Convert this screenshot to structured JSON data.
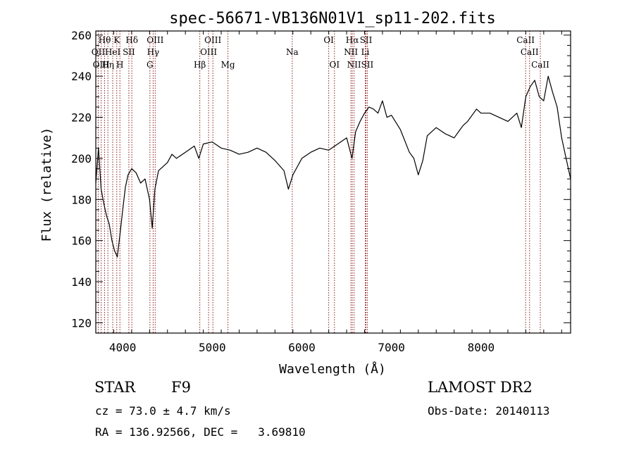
{
  "chart_data": {
    "type": "line",
    "title": "spec-56671-VB136N01V1_sp11-202.fits",
    "xlabel": "Wavelength (Å)",
    "ylabel": "Flux (relative)",
    "xlim": [
      3700,
      9000
    ],
    "ylim": [
      115,
      262
    ],
    "x_ticks": [
      4000,
      5000,
      6000,
      7000,
      8000
    ],
    "x_tick_labels": [
      "4000",
      "5000",
      "6000",
      "7000",
      "8000"
    ],
    "y_ticks": [
      120,
      140,
      160,
      180,
      200,
      220,
      240,
      260
    ],
    "y_tick_labels": [
      "120",
      "140",
      "160",
      "180",
      "200",
      "220",
      "240",
      "260"
    ],
    "grid": false,
    "series": [
      {
        "color": "#000000",
        "x": [
          3700,
          3730,
          3760,
          3790,
          3820,
          3850,
          3880,
          3910,
          3940,
          3970,
          4000,
          4030,
          4060,
          4100,
          4150,
          4200,
          4250,
          4300,
          4330,
          4360,
          4400,
          4450,
          4500,
          4550,
          4600,
          4700,
          4800,
          4850,
          4900,
          5000,
          5100,
          5200,
          5300,
          5400,
          5500,
          5600,
          5700,
          5800,
          5850,
          5900,
          5950,
          6000,
          6100,
          6200,
          6300,
          6400,
          6500,
          6560,
          6600,
          6650,
          6700,
          6750,
          6800,
          6850,
          6900,
          6950,
          7000,
          7100,
          7200,
          7250,
          7300,
          7350,
          7400,
          7500,
          7600,
          7700,
          7750,
          7800,
          7850,
          7900,
          7950,
          8000,
          8100,
          8200,
          8300,
          8400,
          8450,
          8500,
          8550,
          8600,
          8650,
          8700,
          8750,
          8800,
          8850,
          8900,
          8950,
          9000
        ],
        "values": [
          188,
          205,
          185,
          178,
          172,
          168,
          160,
          155,
          152,
          163,
          175,
          186,
          192,
          195,
          193,
          188,
          190,
          180,
          166,
          185,
          194,
          196,
          198,
          202,
          200,
          203,
          206,
          200,
          207,
          208,
          205,
          204,
          202,
          203,
          205,
          203,
          199,
          194,
          185,
          192,
          196,
          200,
          203,
          205,
          204,
          207,
          210,
          200,
          213,
          218,
          222,
          225,
          224,
          222,
          228,
          220,
          221,
          214,
          203,
          200,
          192,
          199,
          211,
          215,
          212,
          210,
          213,
          216,
          218,
          221,
          224,
          222,
          222,
          220,
          218,
          222,
          215,
          230,
          235,
          238,
          230,
          228,
          240,
          232,
          225,
          210,
          200,
          190
        ]
      }
    ],
    "lines": [
      {
        "label": "Hθ",
        "wavelength": 3798,
        "row": 1
      },
      {
        "label": "OII",
        "wavelength": 3727,
        "row": 2
      },
      {
        "label": "OIII",
        "wavelength": 3760,
        "row": 3
      },
      {
        "label": "K",
        "wavelength": 3934,
        "row": 1
      },
      {
        "label": "HeI",
        "wavelength": 3889,
        "row": 2
      },
      {
        "label": "Hη",
        "wavelength": 3835,
        "row": 3
      },
      {
        "label": "Hδ",
        "wavelength": 4102,
        "row": 1
      },
      {
        "label": "SII",
        "wavelength": 4069,
        "row": 2
      },
      {
        "label": "H",
        "wavelength": 3969,
        "row": 3
      },
      {
        "label": "OIII",
        "wavelength": 4363,
        "row": 1
      },
      {
        "label": "Hγ",
        "wavelength": 4340,
        "row": 2
      },
      {
        "label": "G",
        "wavelength": 4304,
        "row": 3
      },
      {
        "label": "OIII",
        "wavelength": 5007,
        "row": 1
      },
      {
        "label": "OIII",
        "wavelength": 4959,
        "row": 2
      },
      {
        "label": "Hβ",
        "wavelength": 4861,
        "row": 3
      },
      {
        "label": "Mg",
        "wavelength": 5175,
        "row": 3
      },
      {
        "label": "Na",
        "wavelength": 5893,
        "row": 2
      },
      {
        "label": "OI",
        "wavelength": 6300,
        "row": 1
      },
      {
        "label": "OI",
        "wavelength": 6364,
        "row": 3
      },
      {
        "label": "Hα",
        "wavelength": 6563,
        "row": 1
      },
      {
        "label": "NII",
        "wavelength": 6548,
        "row": 2
      },
      {
        "label": "NII",
        "wavelength": 6583,
        "row": 3
      },
      {
        "label": "SII",
        "wavelength": 6716,
        "row": 1
      },
      {
        "label": "Li",
        "wavelength": 6708,
        "row": 2
      },
      {
        "label": "SII",
        "wavelength": 6731,
        "row": 3
      },
      {
        "label": "CaII",
        "wavelength": 8498,
        "row": 1
      },
      {
        "label": "CaII",
        "wavelength": 8542,
        "row": 2
      },
      {
        "label": "CaII",
        "wavelength": 8662,
        "row": 3
      }
    ]
  },
  "info": {
    "class_label": "STAR",
    "subclass": "F9",
    "survey": "LAMOST DR2",
    "cz": "cz = 73.0 ± 4.7 km/s",
    "obs_date": "Obs-Date: 20140113",
    "coords": "RA = 136.92566, DEC =   3.69810"
  }
}
